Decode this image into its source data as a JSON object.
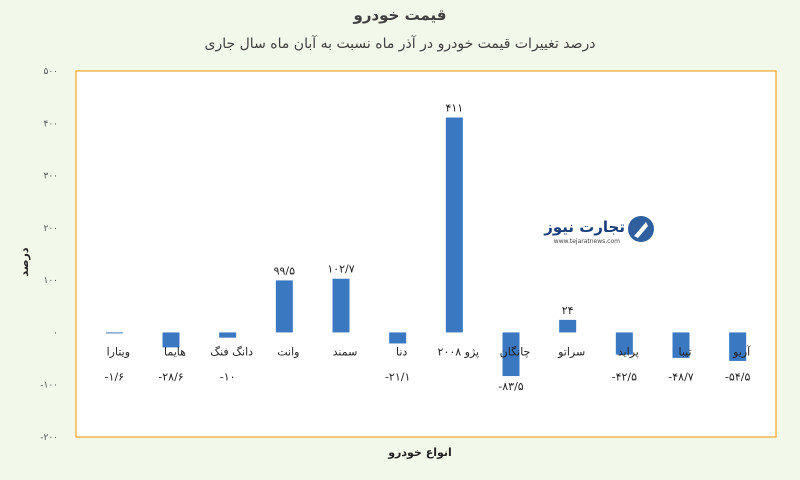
{
  "chart_data": {
    "type": "bar",
    "title": "قیمت خودرو",
    "subtitle": "درصد تغییرات قیمت خودرو در آذر ماه نسبت به آبان ماه سال جاری",
    "xlabel": "انواع خودرو",
    "ylabel": "درصد",
    "ylim": [
      -200,
      500
    ],
    "yticks": [
      -200,
      -100,
      0,
      100,
      200,
      300,
      400,
      500
    ],
    "ytick_labels": [
      "-۲۰۰",
      "-۱۰۰",
      "۰",
      "۱۰۰",
      "۲۰۰",
      "۳۰۰",
      "۴۰۰",
      "۵۰۰"
    ],
    "categories": [
      "آریو",
      "تیبا",
      "پراید",
      "سراتو",
      "چانگان",
      "پژو ۲۰۰۸",
      "دنا",
      "سمند",
      "وانت",
      "دانگ فنگ",
      "هایما",
      "ویتارا"
    ],
    "values": [
      -54.5,
      -48.7,
      -42.5,
      24,
      -83.5,
      411,
      -21.1,
      102.7,
      99.5,
      -10,
      -28.6,
      -1.6
    ],
    "value_labels": [
      "-۵۴/۵",
      "-۴۸/۷",
      "-۴۲/۵",
      "۲۴",
      "-۸۳/۵",
      "۴۱۱",
      "-۲۱/۱",
      "۱۰۲/۷",
      "۹۹/۵",
      "-۱۰",
      "-۲۸/۶",
      "-۱/۶"
    ],
    "bar_color": "#3a78c2",
    "plot_border_color": "#f5a623",
    "grid": false,
    "legend": "none"
  },
  "watermark": {
    "brand": "تجارت نیوز",
    "url": "www.tejaratnews.com"
  }
}
